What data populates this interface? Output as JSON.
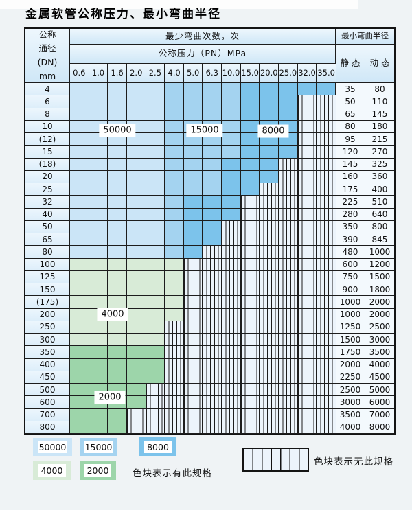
{
  "page": {
    "title": "金属软管公称压力、最小弯曲半径"
  },
  "colors": {
    "c50000": "#cbe5f7",
    "c15000": "#a4d3f0",
    "c8000": "#7cc3eb",
    "c4000": "#d8ebd7",
    "c2000": "#9dd5aa",
    "stripe_bg": "#ecf4fb",
    "grid": "#1d1d1d"
  },
  "table": {
    "corner_header_lines": [
      "公称",
      "通径",
      "(DN)",
      "mm"
    ],
    "bend_cycles_header": "最少弯曲次数，次",
    "pressure_header": "公称压力（PN）MPa",
    "pressure_columns": [
      "0.6",
      "1.0",
      "1.6",
      "2.0",
      "2.5",
      "4.0",
      "5.0",
      "6.3",
      "10.0",
      "15.0",
      "20.0",
      "25.0",
      "32.0",
      "35.0"
    ],
    "radius_header": "最小弯曲半径",
    "static_header": "静 态",
    "dynamic_header": "动 态",
    "rows": [
      {
        "dn": "4",
        "static": "35",
        "dynamic": "80",
        "bands": [
          [
            "50000",
            5
          ],
          [
            "15000",
            4
          ],
          [
            "8000",
            5
          ]
        ]
      },
      {
        "dn": "6",
        "static": "50",
        "dynamic": "110",
        "bands": [
          [
            "50000",
            5
          ],
          [
            "15000",
            4
          ],
          [
            "8000",
            3
          ]
        ]
      },
      {
        "dn": "8",
        "static": "65",
        "dynamic": "145",
        "bands": [
          [
            "50000",
            5
          ],
          [
            "15000",
            4
          ],
          [
            "8000",
            3
          ]
        ]
      },
      {
        "dn": "10",
        "static": "80",
        "dynamic": "180",
        "bands": [
          [
            "50000",
            5
          ],
          [
            "15000",
            4
          ],
          [
            "8000",
            3
          ]
        ]
      },
      {
        "dn": "(12)",
        "static": "95",
        "dynamic": "215",
        "bands": [
          [
            "50000",
            5
          ],
          [
            "15000",
            4
          ],
          [
            "8000",
            3
          ]
        ]
      },
      {
        "dn": "15",
        "static": "120",
        "dynamic": "270",
        "bands": [
          [
            "50000",
            5
          ],
          [
            "15000",
            4
          ],
          [
            "8000",
            3
          ]
        ]
      },
      {
        "dn": "(18)",
        "static": "145",
        "dynamic": "325",
        "bands": [
          [
            "50000",
            5
          ],
          [
            "15000",
            3
          ],
          [
            "8000",
            3
          ]
        ]
      },
      {
        "dn": "20",
        "static": "160",
        "dynamic": "360",
        "bands": [
          [
            "50000",
            5
          ],
          [
            "15000",
            3
          ],
          [
            "8000",
            3
          ]
        ]
      },
      {
        "dn": "25",
        "static": "175",
        "dynamic": "400",
        "bands": [
          [
            "50000",
            5
          ],
          [
            "15000",
            3
          ],
          [
            "8000",
            2
          ]
        ]
      },
      {
        "dn": "32",
        "static": "225",
        "dynamic": "510",
        "bands": [
          [
            "50000",
            5
          ],
          [
            "15000",
            1
          ],
          [
            "8000",
            3
          ]
        ]
      },
      {
        "dn": "40",
        "static": "280",
        "dynamic": "640",
        "bands": [
          [
            "50000",
            5
          ],
          [
            "15000",
            1
          ],
          [
            "8000",
            3
          ]
        ]
      },
      {
        "dn": "50",
        "static": "350",
        "dynamic": "800",
        "bands": [
          [
            "50000",
            5
          ],
          [
            "15000",
            1
          ],
          [
            "8000",
            2
          ]
        ]
      },
      {
        "dn": "65",
        "static": "390",
        "dynamic": "845",
        "bands": [
          [
            "50000",
            5
          ],
          [
            "15000",
            1
          ],
          [
            "8000",
            2
          ]
        ]
      },
      {
        "dn": "80",
        "static": "480",
        "dynamic": "1000",
        "bands": [
          [
            "50000",
            5
          ],
          [
            "15000",
            1
          ],
          [
            "8000",
            1
          ]
        ]
      },
      {
        "dn": "100",
        "static": "600",
        "dynamic": "1200",
        "bands": [
          [
            "4000",
            6
          ]
        ]
      },
      {
        "dn": "125",
        "static": "750",
        "dynamic": "1500",
        "bands": [
          [
            "4000",
            6
          ]
        ]
      },
      {
        "dn": "150",
        "static": "900",
        "dynamic": "1800",
        "bands": [
          [
            "4000",
            6
          ]
        ]
      },
      {
        "dn": "(175)",
        "static": "1000",
        "dynamic": "2000",
        "bands": [
          [
            "4000",
            6
          ]
        ]
      },
      {
        "dn": "200",
        "static": "1000",
        "dynamic": "2000",
        "bands": [
          [
            "4000",
            6
          ]
        ]
      },
      {
        "dn": "250",
        "static": "1250",
        "dynamic": "2500",
        "bands": [
          [
            "4000",
            5
          ]
        ]
      },
      {
        "dn": "300",
        "static": "1500",
        "dynamic": "3000",
        "bands": [
          [
            "4000",
            5
          ]
        ]
      },
      {
        "dn": "350",
        "static": "1750",
        "dynamic": "3500",
        "bands": [
          [
            "2000",
            5
          ]
        ]
      },
      {
        "dn": "400",
        "static": "2000",
        "dynamic": "4000",
        "bands": [
          [
            "2000",
            5
          ]
        ]
      },
      {
        "dn": "450",
        "static": "2250",
        "dynamic": "4500",
        "bands": [
          [
            "2000",
            5
          ]
        ]
      },
      {
        "dn": "500",
        "static": "2500",
        "dynamic": "5000",
        "bands": [
          [
            "2000",
            4
          ]
        ]
      },
      {
        "dn": "600",
        "static": "3000",
        "dynamic": "6000",
        "bands": [
          [
            "2000",
            4
          ]
        ]
      },
      {
        "dn": "700",
        "static": "3500",
        "dynamic": "7000",
        "bands": [
          [
            "2000",
            3
          ]
        ]
      },
      {
        "dn": "800",
        "static": "4000",
        "dynamic": "8000",
        "bands": [
          [
            "2000",
            3
          ]
        ]
      }
    ]
  },
  "annotations": {
    "cycle_labels": [
      "50000",
      "15000",
      "8000",
      "4000",
      "2000"
    ]
  },
  "legend": {
    "items": [
      {
        "label": "50000",
        "color_key": "c50000"
      },
      {
        "label": "15000",
        "color_key": "c15000"
      },
      {
        "label": "8000",
        "color_key": "c8000"
      },
      {
        "label": "4000",
        "color_key": "c4000"
      },
      {
        "label": "2000",
        "color_key": "c2000"
      }
    ],
    "has_spec_text": "色块表示有此规格",
    "no_spec_text": "色块表示无此规格"
  }
}
